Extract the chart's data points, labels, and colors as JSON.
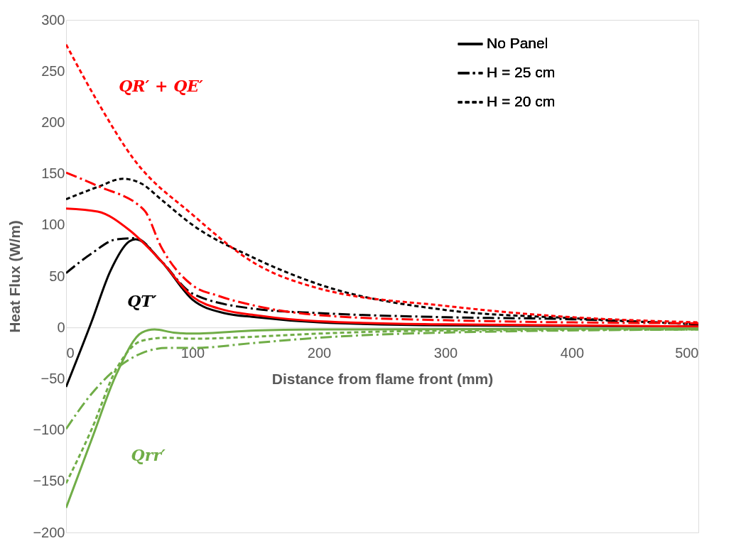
{
  "chart_data": {
    "type": "line",
    "xlabel": "Distance from flame front (mm)",
    "ylabel": "Heat Flux (W/m)",
    "xlim": [
      0,
      500
    ],
    "ylim": [
      -200,
      300
    ],
    "xticks": [
      0,
      100,
      200,
      300,
      400,
      500
    ],
    "yticks": [
      -200,
      -150,
      -100,
      -50,
      0,
      50,
      100,
      150,
      200,
      250,
      300
    ],
    "grid": false,
    "legend": "top right",
    "marker": "none",
    "series": [
      {
        "name": "No Panel",
        "color": "#000000",
        "line_style": "solid",
        "x": [
          0,
          20,
          35,
          50,
          55,
          75,
          100,
          125,
          150,
          200,
          300,
          500
        ],
        "values": [
          -58,
          5,
          55,
          84,
          86,
          65,
          27,
          14,
          10,
          5,
          2,
          1
        ]
      },
      {
        "name": "H = 25 cm",
        "color": "#000000",
        "line_style": "dashdot",
        "x": [
          0,
          20,
          40,
          55,
          75,
          100,
          150,
          200,
          300,
          400,
          500
        ],
        "values": [
          53,
          72,
          86,
          87,
          65,
          33,
          18,
          14,
          10,
          8,
          3
        ]
      },
      {
        "name": "H = 20 cm",
        "color": "#000000",
        "line_style": "dashed",
        "x": [
          0,
          25,
          45,
          60,
          75,
          100,
          150,
          200,
          300,
          400,
          500
        ],
        "values": [
          125,
          137,
          145,
          140,
          125,
          100,
          67,
          42,
          17,
          9,
          3
        ]
      },
      {
        "color": "#ff0000",
        "line_style": "solid",
        "x": [
          0,
          25,
          50,
          75,
          100,
          125,
          150,
          200,
          300,
          500
        ],
        "values": [
          116,
          113,
          95,
          65,
          30,
          17,
          12,
          6,
          3,
          1
        ]
      },
      {
        "color": "#ff0000",
        "line_style": "dashdot",
        "x": [
          0,
          25,
          62,
          75,
          100,
          120,
          150,
          200,
          300,
          500
        ],
        "values": [
          151,
          138,
          114,
          79,
          41,
          31,
          21,
          12,
          7,
          4
        ]
      },
      {
        "color": "#ff0000",
        "line_style": "dashed",
        "x": [
          0,
          25,
          53,
          100,
          150,
          200,
          300,
          400,
          500
        ],
        "values": [
          276,
          220,
          165,
          110,
          62,
          38,
          21,
          10,
          5
        ]
      },
      {
        "color": "#70ad47",
        "line_style": "solid",
        "x": [
          0,
          20,
          40,
          60,
          70,
          85,
          100,
          150,
          200,
          500
        ],
        "values": [
          -176,
          -110,
          -45,
          -5,
          -2,
          -5,
          -6,
          -3,
          -2,
          -1
        ]
      },
      {
        "color": "#70ad47",
        "line_style": "dashed",
        "x": [
          0,
          20,
          40,
          60,
          80,
          100,
          150,
          200,
          300,
          500
        ],
        "values": [
          -152,
          -100,
          -40,
          -13,
          -10,
          -11,
          -9,
          -6,
          -3,
          -2
        ]
      },
      {
        "color": "#70ad47",
        "line_style": "dashdot",
        "x": [
          0,
          20,
          40,
          60,
          80,
          100,
          150,
          200,
          300,
          500
        ],
        "values": [
          -99,
          -65,
          -40,
          -25,
          -20,
          -20,
          -15,
          -10,
          -5,
          -2
        ]
      }
    ],
    "annotations": [
      "QR′ + QE′",
      "QT′",
      "Qrr′"
    ]
  }
}
